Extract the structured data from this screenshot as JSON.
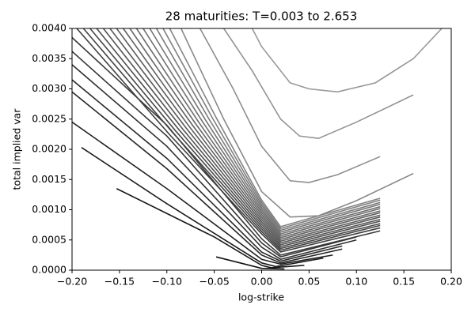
{
  "chart_data": {
    "type": "line",
    "title": "28 maturities: T=0.003 to 2.653",
    "x_label": "log-strike",
    "y_label": "total implied var",
    "xlim": [
      -0.2,
      0.2
    ],
    "ylim": [
      0,
      0.004
    ],
    "xticks": [
      {
        "value": -0.2,
        "label": "−0.20"
      },
      {
        "value": -0.15,
        "label": "−0.15"
      },
      {
        "value": -0.1,
        "label": "−0.10"
      },
      {
        "value": -0.05,
        "label": "−0.05"
      },
      {
        "value": 0,
        "label": "0.00"
      },
      {
        "value": 0.05,
        "label": "0.05"
      },
      {
        "value": 0.1,
        "label": "0.10"
      },
      {
        "value": 0.15,
        "label": "0.15"
      },
      {
        "value": 0.2,
        "label": "0.20"
      }
    ],
    "yticks": [
      {
        "value": 0,
        "label": "0.0000"
      },
      {
        "value": 0.0005,
        "label": "0.0005"
      },
      {
        "value": 0.001,
        "label": "0.0010"
      },
      {
        "value": 0.0015,
        "label": "0.0015"
      },
      {
        "value": 0.002,
        "label": "0.0020"
      },
      {
        "value": 0.0025,
        "label": "0.0025"
      },
      {
        "value": 0.003,
        "label": "0.0030"
      },
      {
        "value": 0.0035,
        "label": "0.0035"
      },
      {
        "value": 0.004,
        "label": "0.0040"
      }
    ],
    "grid": false,
    "series": [
      {
        "color": "#111111",
        "x": [
          -0.048,
          0.0,
          0.024
        ],
        "values": [
          0.00022,
          3e-05,
          2e-05
        ]
      },
      {
        "color": "#161616",
        "x": [
          -0.153,
          -0.05,
          0.0,
          0.01,
          0.045
        ],
        "values": [
          0.00135,
          0.00055,
          8e-05,
          4e-05,
          8e-05
        ]
      },
      {
        "color": "#1b1b1b",
        "x": [
          -0.19,
          -0.1,
          0.0,
          0.015,
          0.065
        ],
        "values": [
          0.00203,
          0.0011,
          0.00012,
          6e-05,
          0.0002
        ]
      },
      {
        "color": "#202020",
        "x": [
          -0.2,
          -0.1,
          0.0,
          0.02,
          0.075
        ],
        "values": [
          0.00245,
          0.00135,
          0.00018,
          0.0001,
          0.00025
        ]
      },
      {
        "color": "#252525",
        "x": [
          -0.2,
          -0.1,
          0.0,
          0.02,
          0.085
        ],
        "values": [
          0.00295,
          0.00168,
          0.00025,
          0.00012,
          0.00035
        ]
      },
      {
        "color": "#2a2a2a",
        "x": [
          -0.2,
          -0.1,
          0.0,
          0.02,
          0.085
        ],
        "values": [
          0.00315,
          0.00185,
          0.0003,
          0.00015,
          0.0004
        ]
      },
      {
        "color": "#2f2f2f",
        "x": [
          -0.2,
          -0.1,
          0.0,
          0.02,
          0.1
        ],
        "values": [
          0.0034,
          0.00205,
          0.00038,
          0.00018,
          0.0005
        ]
      },
      {
        "color": "#343434",
        "x": [
          -0.2,
          -0.1,
          0.0,
          0.02,
          0.1
        ],
        "values": [
          0.00362,
          0.00222,
          0.00045,
          0.00022,
          0.00055
        ]
      },
      {
        "color": "#393939",
        "x": [
          -0.2,
          -0.1,
          0.0,
          0.02,
          0.125
        ],
        "values": [
          0.00385,
          0.0024,
          0.00052,
          0.00025,
          0.00065
        ]
      },
      {
        "color": "#3e3e3e",
        "x": [
          -0.195,
          -0.0975,
          0.0,
          0.02,
          0.125
        ],
        "values": [
          0.004,
          0.00225,
          0.0006,
          0.0003,
          0.0007
        ]
      },
      {
        "color": "#434343",
        "x": [
          -0.188,
          -0.094,
          0.0,
          0.02,
          0.125
        ],
        "values": [
          0.004,
          0.00228,
          0.00064,
          0.00033,
          0.00074
        ]
      },
      {
        "color": "#484848",
        "x": [
          -0.181,
          -0.0905,
          0.0,
          0.02,
          0.125
        ],
        "values": [
          0.004,
          0.0023,
          0.00068,
          0.00036,
          0.00077
        ]
      },
      {
        "color": "#4d4d4d",
        "x": [
          -0.174,
          -0.087,
          0.0,
          0.02,
          0.125
        ],
        "values": [
          0.004,
          0.00232,
          0.00072,
          0.00039,
          0.00081
        ]
      },
      {
        "color": "#525252",
        "x": [
          -0.167,
          -0.0835,
          0.0,
          0.02,
          0.125
        ],
        "values": [
          0.004,
          0.00234,
          0.00076,
          0.00042,
          0.00084
        ]
      },
      {
        "color": "#575757",
        "x": [
          -0.16,
          -0.08,
          0.0,
          0.02,
          0.125
        ],
        "values": [
          0.004,
          0.00236,
          0.0008,
          0.00045,
          0.00088
        ]
      },
      {
        "color": "#5c5c5c",
        "x": [
          -0.153,
          -0.0765,
          0.0,
          0.02,
          0.125
        ],
        "values": [
          0.004,
          0.00238,
          0.00084,
          0.00048,
          0.00091
        ]
      },
      {
        "color": "#616161",
        "x": [
          -0.146,
          -0.073,
          0.0,
          0.02,
          0.125
        ],
        "values": [
          0.004,
          0.0024,
          0.00088,
          0.00051,
          0.00095
        ]
      },
      {
        "color": "#666666",
        "x": [
          -0.139,
          -0.0695,
          0.0,
          0.02,
          0.125
        ],
        "values": [
          0.004,
          0.00242,
          0.00092,
          0.00054,
          0.00098
        ]
      },
      {
        "color": "#6b6b6b",
        "x": [
          -0.132,
          -0.066,
          0.0,
          0.02,
          0.125
        ],
        "values": [
          0.004,
          0.00244,
          0.00096,
          0.00057,
          0.00102
        ]
      },
      {
        "color": "#707070",
        "x": [
          -0.125,
          -0.0625,
          0.0,
          0.02,
          0.125
        ],
        "values": [
          0.004,
          0.00246,
          0.001,
          0.0006,
          0.00105
        ]
      },
      {
        "color": "#757575",
        "x": [
          -0.118,
          -0.059,
          0.0,
          0.02,
          0.125
        ],
        "values": [
          0.004,
          0.00248,
          0.00104,
          0.00063,
          0.00109
        ]
      },
      {
        "color": "#7a7a7a",
        "x": [
          -0.111,
          -0.0555,
          0.0,
          0.02,
          0.125
        ],
        "values": [
          0.004,
          0.0025,
          0.00108,
          0.00066,
          0.00112
        ]
      },
      {
        "color": "#7f7f7f",
        "x": [
          -0.104,
          -0.052,
          0.0,
          0.02,
          0.125
        ],
        "values": [
          0.004,
          0.00252,
          0.00112,
          0.00069,
          0.00116
        ]
      },
      {
        "color": "#848484",
        "x": [
          -0.097,
          -0.0485,
          0.0,
          0.02,
          0.125
        ],
        "values": [
          0.004,
          0.00254,
          0.00116,
          0.00072,
          0.00119
        ]
      },
      {
        "color": "#898989",
        "x": [
          -0.085,
          -0.04,
          0.0,
          0.03,
          0.06,
          0.1,
          0.16
        ],
        "values": [
          0.004,
          0.0025,
          0.0013,
          0.00088,
          0.0009,
          0.00115,
          0.0016
        ]
      },
      {
        "color": "#8e8e8e",
        "x": [
          -0.065,
          -0.03,
          0.0,
          0.03,
          0.05,
          0.08,
          0.125
        ],
        "values": [
          0.004,
          0.003,
          0.00205,
          0.00148,
          0.00145,
          0.00158,
          0.00188
        ]
      },
      {
        "color": "#939393",
        "x": [
          -0.04,
          -0.01,
          0.02,
          0.04,
          0.06,
          0.1,
          0.16
        ],
        "values": [
          0.004,
          0.0033,
          0.0025,
          0.00222,
          0.00218,
          0.00245,
          0.0029
        ]
      },
      {
        "color": "#989898",
        "x": [
          -0.01,
          0.0,
          0.03,
          0.05,
          0.08,
          0.12,
          0.16,
          0.19
        ],
        "values": [
          0.004,
          0.0037,
          0.0031,
          0.003,
          0.00295,
          0.0031,
          0.0035,
          0.004
        ]
      }
    ]
  }
}
